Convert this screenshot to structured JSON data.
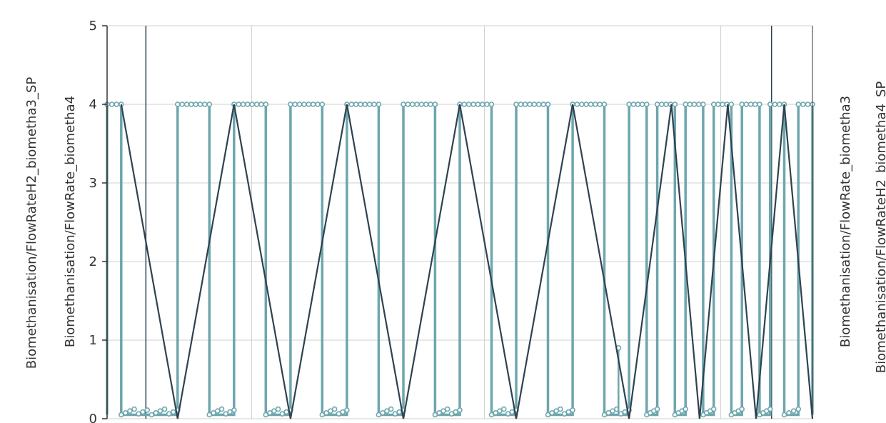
{
  "chart_data": {
    "type": "line",
    "title": "",
    "xlabel": "",
    "ylim": [
      0,
      5
    ],
    "yticks": [
      0,
      1,
      2,
      3,
      4,
      5
    ],
    "ytick_labels": [
      "0",
      "1",
      "2",
      "3",
      "4",
      "5"
    ],
    "y_axis_labels_left": [
      "Biomethanisation/FlowRateH2_biometha3_SP",
      "Biomethanisation/FlowRate_biometha4"
    ],
    "y_axis_labels_right": [
      "Biomethanisation/FlowRate_biometha3",
      "Biomethanisation/FlowRateH2_biometha4_SP"
    ],
    "grid": true,
    "colors": {
      "series_light": "#6ea6ad",
      "series_dark": "#2f4250",
      "grid": "#d0d0d0",
      "axis": "#333333"
    },
    "x_range": [
      0,
      100
    ],
    "series": [
      {
        "style": "dark-line",
        "x": [
          2,
          10,
          18,
          26,
          34,
          42,
          50,
          58,
          66,
          74,
          80,
          84,
          88,
          92,
          96,
          100
        ],
        "y": [
          4,
          0,
          4,
          0,
          4,
          0,
          4,
          0,
          4,
          0,
          4,
          0,
          4,
          0,
          4,
          0
        ]
      },
      {
        "style": "light-square-wave-with-markers",
        "plateaus_at_4": [
          [
            0,
            2
          ],
          [
            10,
            14.5
          ],
          [
            18,
            22.5
          ],
          [
            26,
            30.5
          ],
          [
            34,
            38.5
          ],
          [
            42,
            46.5
          ],
          [
            50,
            54.5
          ],
          [
            58,
            62.5
          ],
          [
            66,
            70.5
          ],
          [
            74,
            76.5
          ],
          [
            78,
            80.5
          ],
          [
            82,
            84.5
          ],
          [
            86,
            88.5
          ],
          [
            90,
            92.5
          ],
          [
            94,
            96
          ],
          [
            98,
            100
          ]
        ],
        "baseline_y": 0.05,
        "spike": {
          "x": 72.5,
          "y": 0.9
        }
      }
    ]
  }
}
